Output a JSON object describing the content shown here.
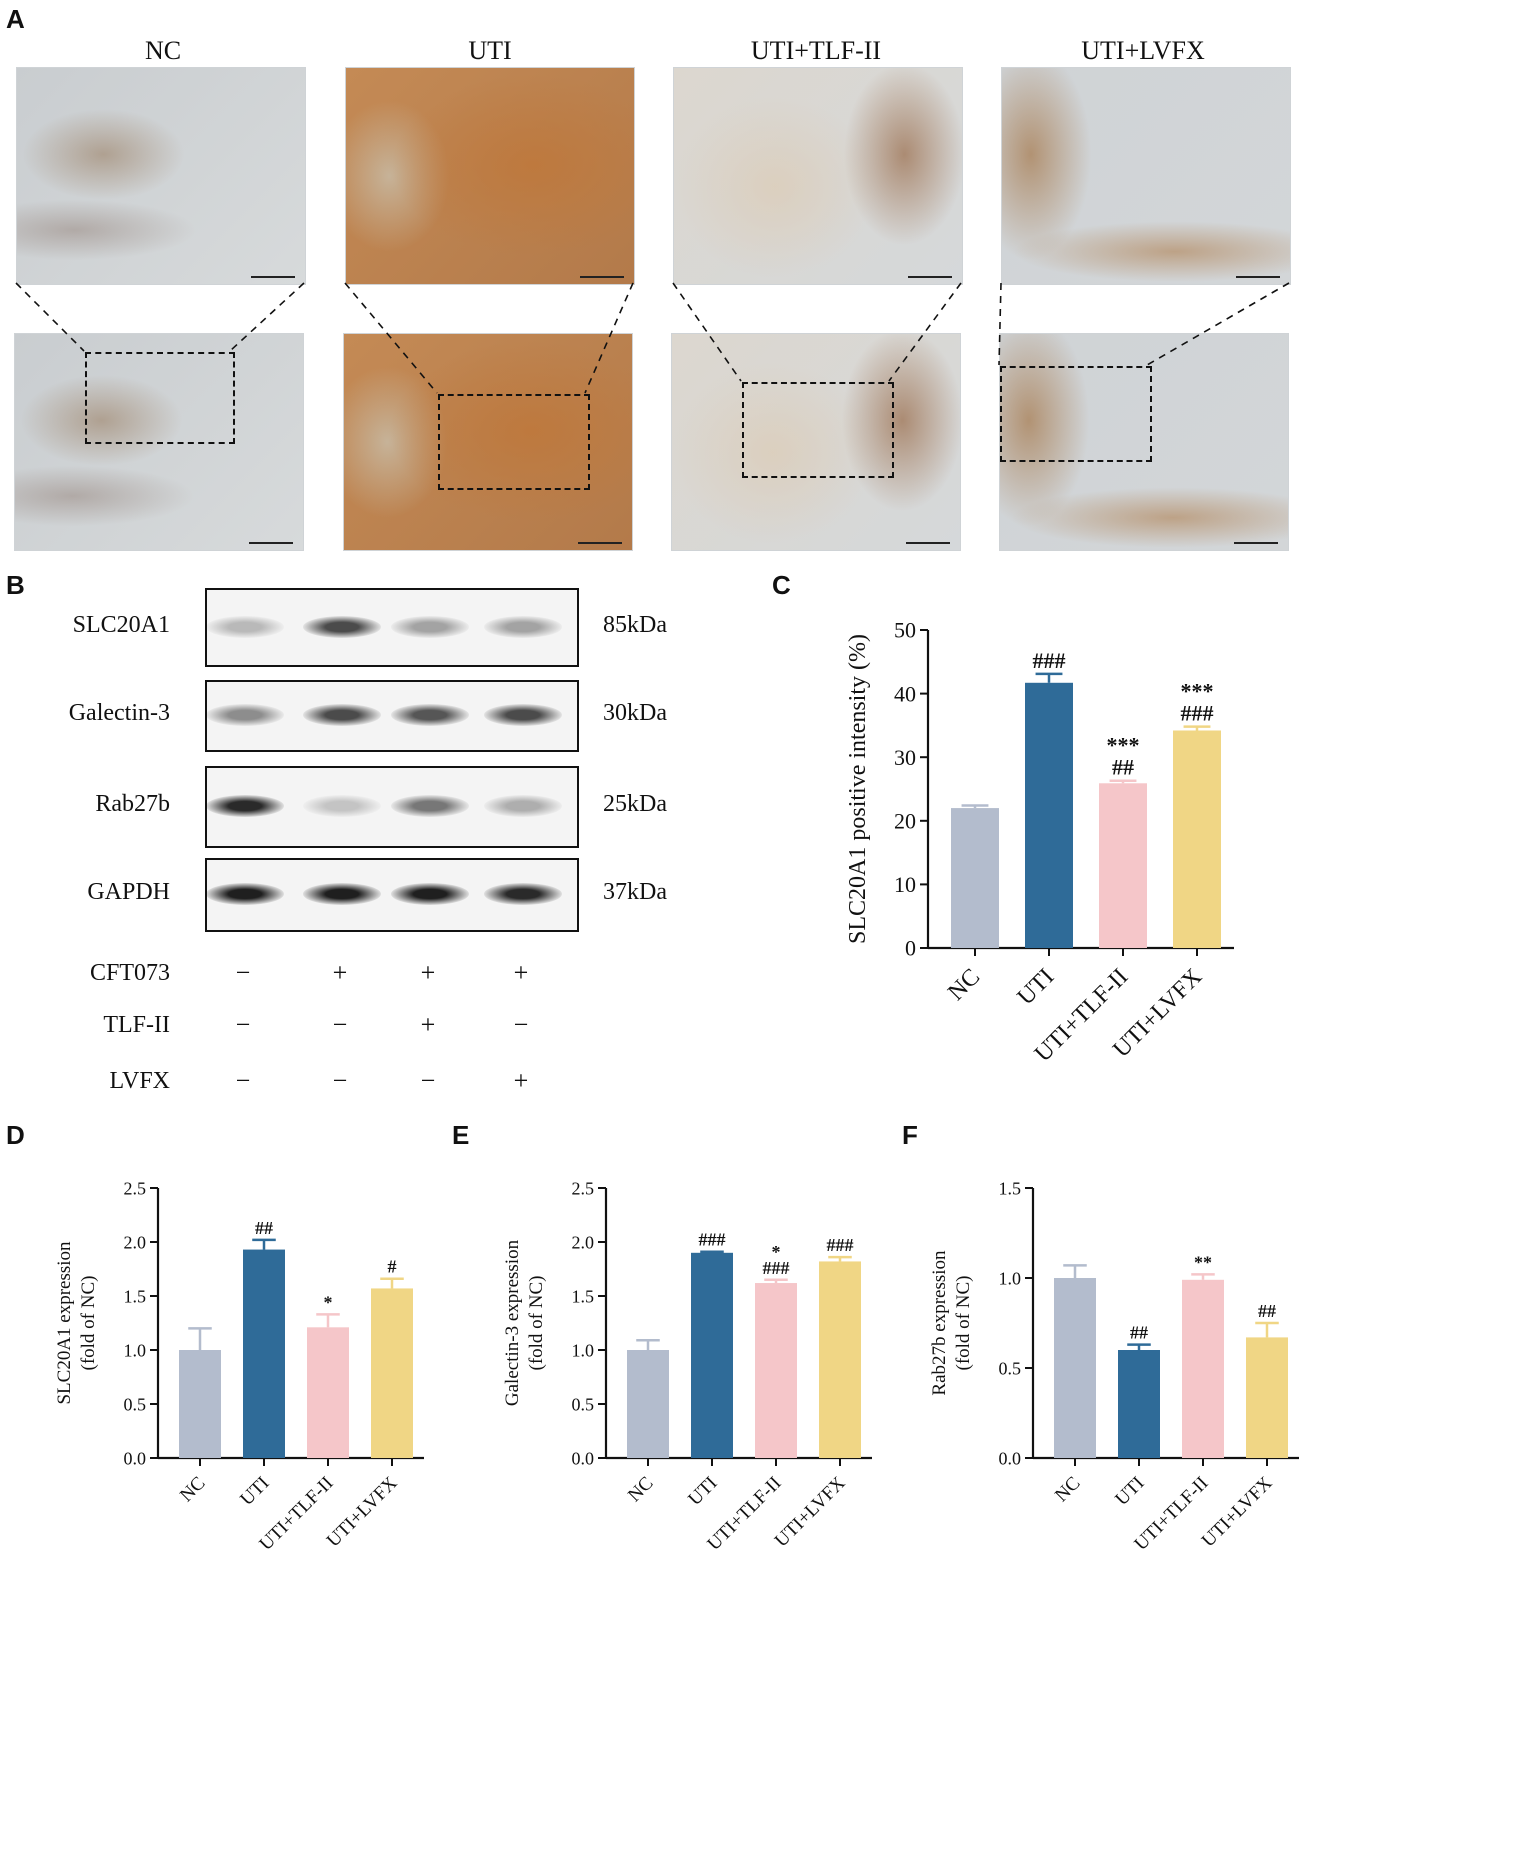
{
  "panels": {
    "A": "A",
    "B": "B",
    "C": "C",
    "D": "D",
    "E": "E",
    "F": "F"
  },
  "micrographs": {
    "titles": [
      "NC",
      "UTI",
      "UTI+TLF-II",
      "UTI+LVFX"
    ]
  },
  "western_blot": {
    "proteins": [
      "SLC20A1",
      "Galectin-3",
      "Rab27b",
      "GAPDH"
    ],
    "sizes": [
      "85kDa",
      "30kDa",
      "25kDa",
      "37kDa"
    ],
    "treatments": [
      {
        "name": "CFT073",
        "signs": [
          "−",
          "+",
          "+",
          "+"
        ]
      },
      {
        "name": "TLF-II",
        "signs": [
          "−",
          "−",
          "+",
          "−"
        ]
      },
      {
        "name": "LVFX",
        "signs": [
          "−",
          "−",
          "−",
          "+"
        ]
      }
    ],
    "band_intensity": [
      [
        0.25,
        0.75,
        0.35,
        0.35
      ],
      [
        0.45,
        0.75,
        0.7,
        0.75
      ],
      [
        0.9,
        0.2,
        0.55,
        0.3
      ],
      [
        0.95,
        0.95,
        0.95,
        0.9
      ]
    ]
  },
  "chart_data": [
    {
      "id": "C",
      "type": "bar",
      "categories": [
        "NC",
        "UTI",
        "UTI+TLF-II",
        "UTI+LVFX"
      ],
      "values": [
        22,
        41.7,
        25.9,
        34.2
      ],
      "errors": [
        0.4,
        1.4,
        0.4,
        0.6
      ],
      "colors": [
        "#b3bccd",
        "#2f6b98",
        "#f5c6c9",
        "#f0d685"
      ],
      "ylabel": "SLC20A1  positive intensity (%)",
      "ylim": [
        0,
        50
      ],
      "yticks": [
        "0",
        "10",
        "20",
        "30",
        "40",
        "50"
      ],
      "annotations": [
        [],
        [
          "###"
        ],
        [
          "***",
          "##"
        ],
        [
          "***",
          "###"
        ]
      ]
    },
    {
      "id": "D",
      "type": "bar",
      "categories": [
        "NC",
        "UTI",
        "UTI+TLF-II",
        "UTI+LVFX"
      ],
      "values": [
        1.0,
        1.93,
        1.21,
        1.57
      ],
      "errors": [
        0.2,
        0.09,
        0.12,
        0.09
      ],
      "colors": [
        "#b3bccd",
        "#2f6b98",
        "#f5c6c9",
        "#f0d685"
      ],
      "ylabel": "SLC20A1 expression",
      "ylabel2": "(fold of NC)",
      "ylim": [
        0,
        2.5
      ],
      "yticks": [
        "0.0",
        "0.5",
        "1.0",
        "1.5",
        "2.0",
        "2.5"
      ],
      "annotations": [
        [],
        [
          "##"
        ],
        [
          "*"
        ],
        [
          "#"
        ]
      ]
    },
    {
      "id": "E",
      "type": "bar",
      "categories": [
        "NC",
        "UTI",
        "UTI+TLF-II",
        "UTI+LVFX"
      ],
      "values": [
        1.0,
        1.9,
        1.62,
        1.82
      ],
      "errors": [
        0.09,
        0.01,
        0.03,
        0.04
      ],
      "colors": [
        "#b3bccd",
        "#2f6b98",
        "#f5c6c9",
        "#f0d685"
      ],
      "ylabel": "Galectin-3 expression",
      "ylabel2": "(fold of NC)",
      "ylim": [
        0,
        2.5
      ],
      "yticks": [
        "0.0",
        "0.5",
        "1.0",
        "1.5",
        "2.0",
        "2.5"
      ],
      "annotations": [
        [],
        [
          "###"
        ],
        [
          "*",
          "###"
        ],
        [
          "###"
        ]
      ]
    },
    {
      "id": "F",
      "type": "bar",
      "categories": [
        "NC",
        "UTI",
        "UTI+TLF-II",
        "UTI+LVFX"
      ],
      "values": [
        1.0,
        0.6,
        0.99,
        0.67
      ],
      "errors": [
        0.07,
        0.03,
        0.03,
        0.08
      ],
      "colors": [
        "#b3bccd",
        "#2f6b98",
        "#f5c6c9",
        "#f0d685"
      ],
      "ylabel": "Rab27b expression",
      "ylabel2": "(fold of NC)",
      "ylim": [
        0,
        1.5
      ],
      "yticks": [
        "0.0",
        "0.5",
        "1.0",
        "1.5"
      ],
      "annotations": [
        [],
        [
          "##"
        ],
        [
          "**"
        ],
        [
          "##"
        ]
      ]
    }
  ]
}
